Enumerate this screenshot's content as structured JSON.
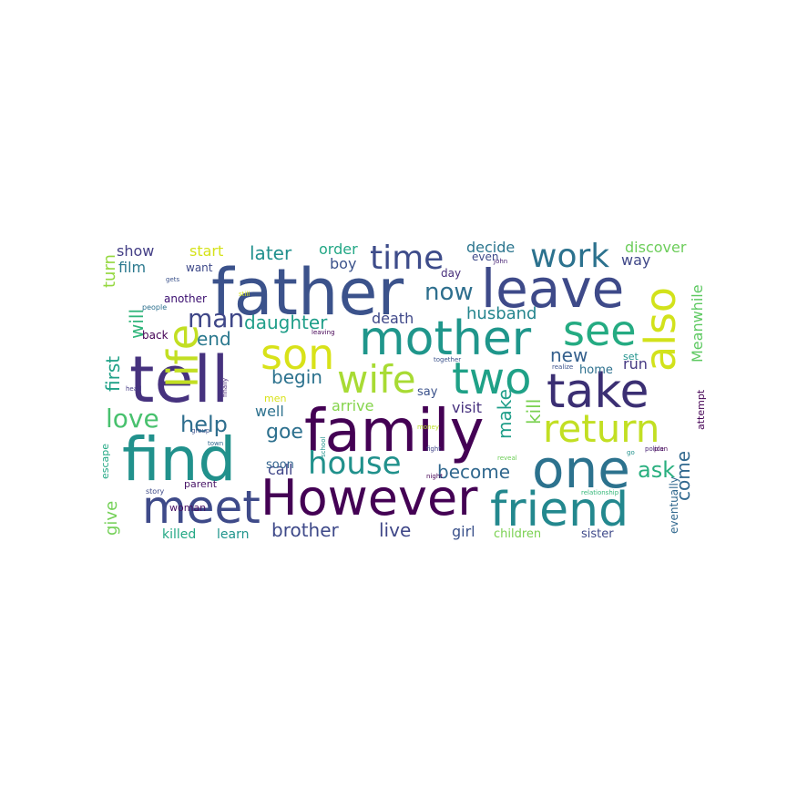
{
  "words": [
    {
      "text": "father",
      "color": "#3b528b"
    },
    {
      "text": "leave",
      "color": "#3e4a89"
    },
    {
      "text": "family",
      "color": "#440154"
    },
    {
      "text": "However",
      "color": "#440154"
    },
    {
      "text": "tell",
      "color": "#46327e"
    },
    {
      "text": "find",
      "color": "#21918c"
    },
    {
      "text": "mother",
      "color": "#1f968b"
    },
    {
      "text": "one",
      "color": "#2c728e"
    },
    {
      "text": "friend",
      "color": "#23888e"
    },
    {
      "text": "take",
      "color": "#3b2f73"
    },
    {
      "text": "see",
      "color": "#25ab82"
    },
    {
      "text": "son",
      "color": "#d8e219"
    },
    {
      "text": "two",
      "color": "#1fa187"
    },
    {
      "text": "meet",
      "color": "#3e4a89"
    },
    {
      "text": "wife",
      "color": "#a8db34"
    },
    {
      "text": "also",
      "color": "#d2e21b"
    },
    {
      "text": "life",
      "color": "#c2df23"
    },
    {
      "text": "return",
      "color": "#c2df23"
    },
    {
      "text": "time",
      "color": "#3e4c8a"
    },
    {
      "text": "work",
      "color": "#2c728e"
    },
    {
      "text": "house",
      "color": "#21918c"
    },
    {
      "text": "now",
      "color": "#2e6f8e"
    },
    {
      "text": "man",
      "color": "#3f4788"
    },
    {
      "text": "love",
      "color": "#48c16e"
    },
    {
      "text": "help",
      "color": "#2e6e8e"
    },
    {
      "text": "ask",
      "color": "#29af7f"
    },
    {
      "text": "goe",
      "color": "#2d708e"
    },
    {
      "text": "daughter",
      "color": "#1f9e89"
    },
    {
      "text": "begin",
      "color": "#2c728e"
    },
    {
      "text": "become",
      "color": "#31688e"
    },
    {
      "text": "brother",
      "color": "#3e4989"
    },
    {
      "text": "live",
      "color": "#3f4788"
    },
    {
      "text": "come",
      "color": "#31688e"
    },
    {
      "text": "make",
      "color": "#1f9e89"
    },
    {
      "text": "kill",
      "color": "#7ad151"
    },
    {
      "text": "husband",
      "color": "#25858e"
    },
    {
      "text": "end",
      "color": "#2a788e"
    },
    {
      "text": "later",
      "color": "#21908d"
    },
    {
      "text": "new",
      "color": "#35608d"
    },
    {
      "text": "first",
      "color": "#1fa187"
    },
    {
      "text": "will",
      "color": "#30b57a"
    },
    {
      "text": "turn",
      "color": "#95d840"
    },
    {
      "text": "give",
      "color": "#73d056"
    },
    {
      "text": "arrive",
      "color": "#84d44b"
    },
    {
      "text": "Meanwhile",
      "color": "#5ec962"
    },
    {
      "text": "run",
      "color": "#453882"
    },
    {
      "text": "call",
      "color": "#404688"
    },
    {
      "text": "visit",
      "color": "#46307e"
    },
    {
      "text": "death",
      "color": "#3f4889"
    },
    {
      "text": "start",
      "color": "#d5e21a"
    },
    {
      "text": "order",
      "color": "#22a785"
    },
    {
      "text": "decide",
      "color": "#2b758e"
    },
    {
      "text": "discover",
      "color": "#6ccd5a"
    },
    {
      "text": "show",
      "color": "#433e85"
    },
    {
      "text": "boy",
      "color": "#3b528b"
    },
    {
      "text": "way",
      "color": "#3f4788"
    },
    {
      "text": "film",
      "color": "#2a788e"
    },
    {
      "text": "well",
      "color": "#2d718e"
    },
    {
      "text": "soon",
      "color": "#32648e"
    },
    {
      "text": "girl",
      "color": "#3b528b"
    },
    {
      "text": "children",
      "color": "#7ad151"
    },
    {
      "text": "sister",
      "color": "#3e4989"
    },
    {
      "text": "killed",
      "color": "#22a884"
    },
    {
      "text": "learn",
      "color": "#1f948c"
    },
    {
      "text": "home",
      "color": "#2d708e"
    },
    {
      "text": "set",
      "color": "#20928c"
    },
    {
      "text": "say",
      "color": "#3b528b"
    },
    {
      "text": "men",
      "color": "#d8e219"
    },
    {
      "text": "attempt",
      "color": "#440154"
    },
    {
      "text": "eventually",
      "color": "#31688e"
    },
    {
      "text": "want",
      "color": "#3e4989"
    },
    {
      "text": "day",
      "color": "#472d7b"
    },
    {
      "text": "even",
      "color": "#3e4a89"
    },
    {
      "text": "another",
      "color": "#3b0f70"
    },
    {
      "text": "back",
      "color": "#440154"
    },
    {
      "text": "parent",
      "color": "#471365"
    },
    {
      "text": "woman",
      "color": "#471063"
    },
    {
      "text": "escape",
      "color": "#22a884"
    },
    {
      "text": "story",
      "color": "#3e4a89"
    },
    {
      "text": "people",
      "color": "#2d708e"
    },
    {
      "text": "gets",
      "color": "#3b528b"
    },
    {
      "text": "still",
      "color": "#d8e219"
    },
    {
      "text": "John",
      "color": "#482475"
    },
    {
      "text": "realize",
      "color": "#3b528b"
    },
    {
      "text": "go",
      "color": "#21918c"
    },
    {
      "text": "police",
      "color": "#482475"
    },
    {
      "text": "plan",
      "color": "#440154"
    },
    {
      "text": "relationship",
      "color": "#35b779"
    },
    {
      "text": "fight",
      "color": "#404588"
    },
    {
      "text": "night",
      "color": "#440154"
    },
    {
      "text": "money",
      "color": "#bddf26"
    },
    {
      "text": "reveal",
      "color": "#6ece58"
    },
    {
      "text": "together",
      "color": "#3b528b"
    },
    {
      "text": "leaving",
      "color": "#440154"
    },
    {
      "text": "school",
      "color": "#21918c"
    },
    {
      "text": "finally",
      "color": "#482878"
    },
    {
      "text": "group",
      "color": "#3b528b"
    },
    {
      "text": "head",
      "color": "#443983"
    },
    {
      "text": "town",
      "color": "#31688e"
    }
  ]
}
